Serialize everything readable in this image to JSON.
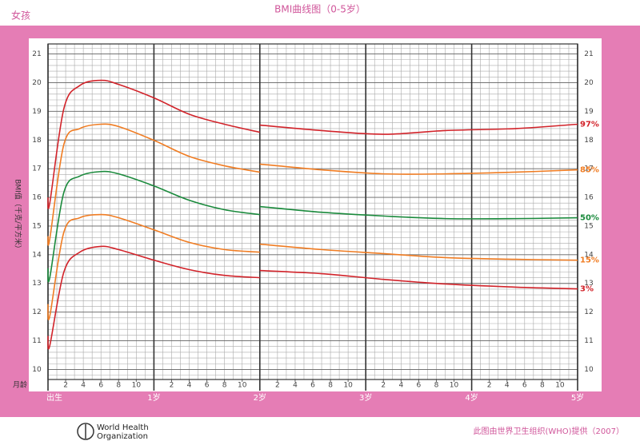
{
  "chart_data": {
    "type": "line",
    "title": "BMI曲线图（0-5岁）",
    "gender": "女孩",
    "ylabel": "BMI值（千克/平方米）",
    "xlabel": "月龄",
    "source": "此图由世界卫生组织(WHO)提供（2007）",
    "logo_text": [
      "World Health",
      "Organization"
    ],
    "xlim": [
      0,
      60
    ],
    "ylim": [
      9.65,
      21.35
    ],
    "yticks": [
      10,
      11,
      12,
      13,
      14,
      15,
      16,
      17,
      18,
      19,
      20,
      21
    ],
    "xticks": [
      {
        "value": 0,
        "label": "出生"
      },
      {
        "value": 12,
        "label": "1岁"
      },
      {
        "value": 24,
        "label": "2岁"
      },
      {
        "value": 36,
        "label": "3岁"
      },
      {
        "value": 48,
        "label": "4岁"
      },
      {
        "value": 60,
        "label": "5岁"
      }
    ],
    "month_ticks": [
      2,
      4,
      6,
      8,
      10,
      {
        "value": 14,
        "label": "2"
      },
      {
        "value": 16,
        "label": "4"
      },
      {
        "value": 18,
        "label": "6"
      },
      {
        "value": 20,
        "label": "8"
      },
      {
        "value": 22,
        "label": "10"
      },
      {
        "value": 26,
        "label": "2"
      },
      {
        "value": 28,
        "label": "4"
      },
      {
        "value": 30,
        "label": "6"
      },
      {
        "value": 32,
        "label": "8"
      },
      {
        "value": 34,
        "label": "10"
      },
      {
        "value": 38,
        "label": "2"
      },
      {
        "value": 40,
        "label": "4"
      },
      {
        "value": 42,
        "label": "6"
      },
      {
        "value": 44,
        "label": "8"
      },
      {
        "value": 46,
        "label": "10"
      },
      {
        "value": 50,
        "label": "2"
      },
      {
        "value": 52,
        "label": "4"
      },
      {
        "value": 54,
        "label": "6"
      },
      {
        "value": 56,
        "label": "8"
      },
      {
        "value": 58,
        "label": "10"
      }
    ],
    "grid": true,
    "x": [
      0,
      0.2,
      1.8,
      3.6,
      6,
      8,
      12,
      16,
      20,
      24,
      24,
      24,
      31,
      38,
      45,
      53,
      60
    ],
    "series": [
      {
        "name": "97%",
        "color": "#d2232a",
        "values": [
          16.0,
          15.8,
          19.1,
          19.9,
          20.08,
          19.94,
          19.47,
          18.9,
          18.55,
          18.27,
          null,
          18.52,
          18.33,
          18.2,
          18.33,
          18.4,
          18.55
        ]
      },
      {
        "name": "85%",
        "color": "#f07c22",
        "values": [
          14.65,
          14.55,
          17.85,
          18.4,
          18.55,
          18.47,
          17.99,
          17.43,
          17.1,
          16.88,
          null,
          17.16,
          16.96,
          16.82,
          16.82,
          16.88,
          16.96
        ]
      },
      {
        "name": "50%",
        "color": "#1a8a3c",
        "values": [
          13.53,
          13.2,
          16.18,
          16.74,
          16.9,
          16.82,
          16.4,
          15.9,
          15.57,
          15.4,
          null,
          15.68,
          15.48,
          15.35,
          15.26,
          15.26,
          15.29
        ]
      },
      {
        "name": "15%",
        "color": "#f07c22",
        "values": [
          12.28,
          11.86,
          14.79,
          15.29,
          15.4,
          15.29,
          14.87,
          14.43,
          14.18,
          14.09,
          null,
          14.37,
          14.18,
          14.04,
          13.9,
          13.84,
          13.81
        ]
      },
      {
        "name": "3%",
        "color": "#d2232a",
        "values": [
          11.17,
          10.83,
          13.4,
          14.09,
          14.29,
          14.18,
          13.81,
          13.48,
          13.28,
          13.2,
          null,
          13.45,
          13.34,
          13.14,
          12.98,
          12.87,
          12.81
        ]
      }
    ]
  }
}
